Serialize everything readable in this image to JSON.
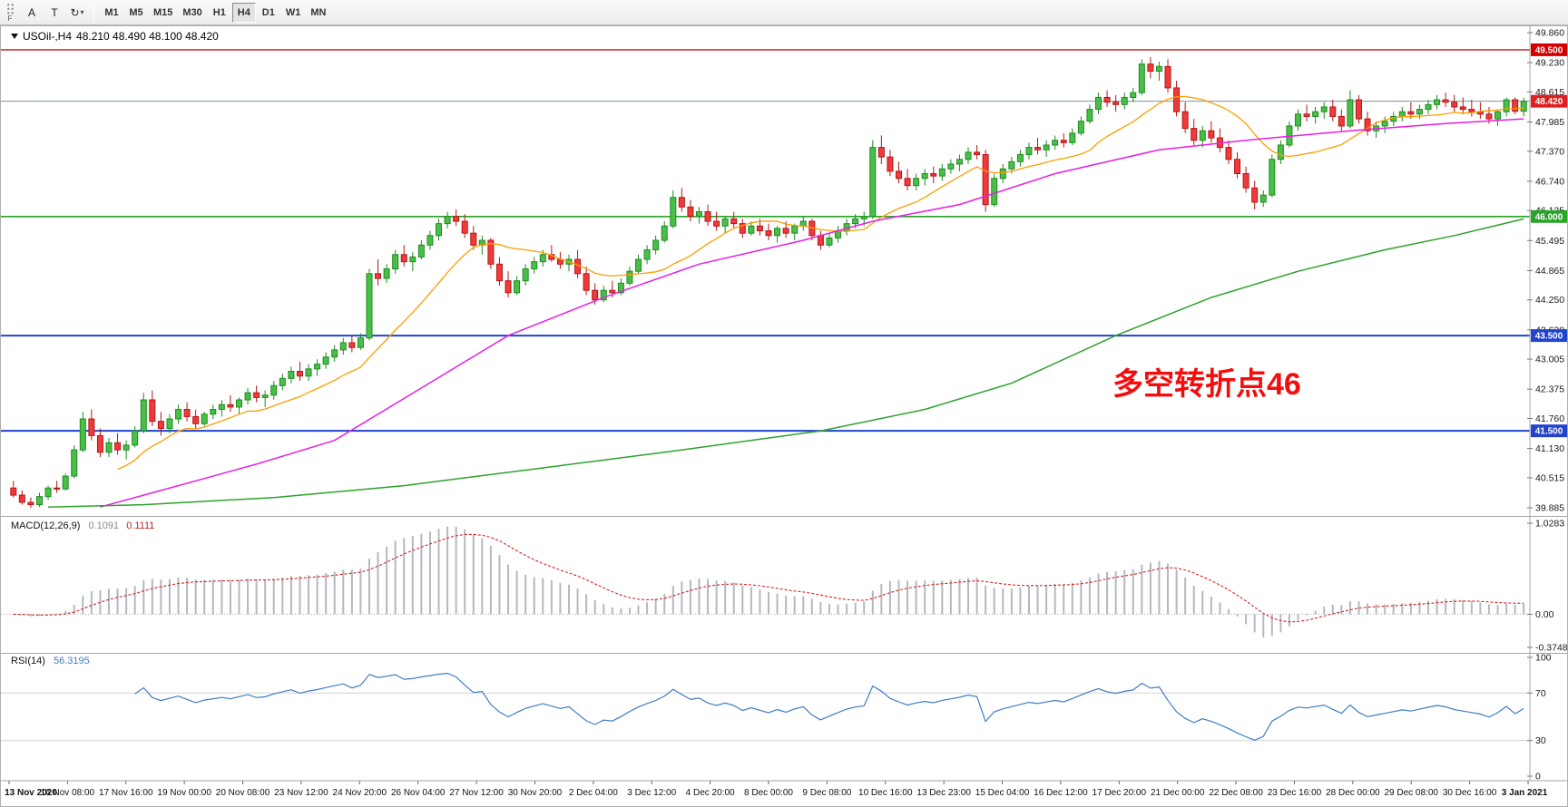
{
  "toolbar": {
    "grip_label": "F",
    "buttons": [
      {
        "name": "annotation-tool",
        "label": "A"
      },
      {
        "name": "text-tool",
        "label": "T"
      },
      {
        "name": "cycle-tool",
        "label": "↻",
        "caret": "▾"
      }
    ],
    "timeframes": [
      "M1",
      "M5",
      "M15",
      "M30",
      "H1",
      "H4",
      "D1",
      "W1",
      "MN"
    ],
    "active_timeframe": "H4"
  },
  "chart_data": {
    "type": "candlestick",
    "symbol_label": "USOil-,H4",
    "ohlc_display": "48.210 48.490 48.100 48.420",
    "annotation": {
      "text": "多空转折点46",
      "color": "#f50d0d"
    },
    "price_range": [
      39.885,
      49.86
    ],
    "price_axis_ticks": [
      "49.860",
      "49.230",
      "48.615",
      "47.985",
      "47.370",
      "46.740",
      "46.125",
      "45.495",
      "44.865",
      "44.250",
      "43.620",
      "43.005",
      "42.375",
      "41.760",
      "41.130",
      "40.515",
      "39.885"
    ],
    "bull_color": "#49bf49",
    "bull_stroke": "#1e8c1e",
    "bear_color": "#ef3a3a",
    "bear_stroke": "#b51616",
    "hlines": [
      {
        "price": 49.5,
        "color": "#cc1111",
        "width": 1.4,
        "badge": "49.500",
        "badge_color": "#d40000"
      },
      {
        "price": 46.0,
        "color": "#28a428",
        "width": 1.6,
        "badge": "46.000",
        "badge_color": "#28a428"
      },
      {
        "price": 43.5,
        "color": "#2244cc",
        "width": 2,
        "badge": "43.500",
        "badge_color": "#2244cc"
      },
      {
        "price": 41.5,
        "color": "#2244cc",
        "width": 2,
        "badge": "41.500",
        "badge_color": "#2244cc"
      }
    ],
    "current_price": {
      "value": 48.42,
      "badge": "48.420",
      "line_color": "#7d8f9e",
      "badge_color": "#e02020"
    },
    "ma_fast": {
      "period": 13,
      "color": "#ff9d00"
    },
    "ma_mid": {
      "color": "#e61ee6",
      "points": [
        [
          10,
          39.9
        ],
        [
          16,
          40.2
        ],
        [
          28,
          40.8
        ],
        [
          37,
          41.3
        ],
        [
          47,
          42.4
        ],
        [
          57,
          43.5
        ],
        [
          68,
          44.3
        ],
        [
          79,
          45.0
        ],
        [
          91,
          45.5
        ],
        [
          99,
          45.9
        ],
        [
          109,
          46.25
        ],
        [
          120,
          46.9
        ],
        [
          132,
          47.4
        ],
        [
          142,
          47.6
        ],
        [
          154,
          47.8
        ],
        [
          165,
          47.95
        ],
        [
          174,
          48.05
        ]
      ]
    },
    "ma_slow": {
      "color": "#2ba32b",
      "points": [
        [
          4,
          39.9
        ],
        [
          15,
          39.95
        ],
        [
          30,
          40.1
        ],
        [
          45,
          40.35
        ],
        [
          60,
          40.7
        ],
        [
          75,
          41.05
        ],
        [
          93,
          41.5
        ],
        [
          105,
          41.95
        ],
        [
          115,
          42.5
        ],
        [
          127,
          43.5
        ],
        [
          138,
          44.3
        ],
        [
          148,
          44.85
        ],
        [
          158,
          45.3
        ],
        [
          166,
          45.6
        ],
        [
          174,
          45.95
        ]
      ]
    },
    "candles": [
      [
        40.3,
        40.45,
        40.1,
        40.15
      ],
      [
        40.15,
        40.25,
        39.95,
        40.0
      ],
      [
        40.0,
        40.1,
        39.88,
        39.95
      ],
      [
        39.95,
        40.2,
        39.9,
        40.12
      ],
      [
        40.12,
        40.35,
        40.05,
        40.3
      ],
      [
        40.3,
        40.45,
        40.2,
        40.28
      ],
      [
        40.28,
        40.6,
        40.25,
        40.55
      ],
      [
        40.55,
        41.2,
        40.5,
        41.1
      ],
      [
        41.1,
        41.9,
        41.05,
        41.75
      ],
      [
        41.75,
        41.95,
        41.3,
        41.4
      ],
      [
        41.4,
        41.55,
        40.95,
        41.05
      ],
      [
        41.05,
        41.35,
        40.95,
        41.25
      ],
      [
        41.25,
        41.45,
        41.0,
        41.1
      ],
      [
        41.1,
        41.3,
        40.9,
        41.2
      ],
      [
        41.2,
        41.6,
        41.15,
        41.5
      ],
      [
        41.5,
        42.3,
        41.45,
        42.15
      ],
      [
        42.15,
        42.35,
        41.6,
        41.7
      ],
      [
        41.7,
        41.9,
        41.4,
        41.55
      ],
      [
        41.55,
        41.85,
        41.45,
        41.75
      ],
      [
        41.75,
        42.05,
        41.65,
        41.95
      ],
      [
        41.95,
        42.1,
        41.7,
        41.8
      ],
      [
        41.8,
        41.95,
        41.55,
        41.65
      ],
      [
        41.65,
        41.9,
        41.6,
        41.85
      ],
      [
        41.85,
        42.05,
        41.75,
        41.95
      ],
      [
        41.95,
        42.15,
        41.8,
        42.05
      ],
      [
        42.05,
        42.25,
        41.9,
        42.0
      ],
      [
        42.0,
        42.2,
        41.85,
        42.15
      ],
      [
        42.15,
        42.4,
        42.05,
        42.3
      ],
      [
        42.3,
        42.45,
        42.1,
        42.2
      ],
      [
        42.2,
        42.35,
        42.0,
        42.25
      ],
      [
        42.25,
        42.55,
        42.15,
        42.45
      ],
      [
        42.45,
        42.7,
        42.35,
        42.6
      ],
      [
        42.6,
        42.85,
        42.5,
        42.75
      ],
      [
        42.75,
        42.95,
        42.55,
        42.65
      ],
      [
        42.65,
        42.9,
        42.55,
        42.8
      ],
      [
        42.8,
        43.0,
        42.65,
        42.9
      ],
      [
        42.9,
        43.15,
        42.8,
        43.05
      ],
      [
        43.05,
        43.3,
        42.95,
        43.2
      ],
      [
        43.2,
        43.45,
        43.1,
        43.35
      ],
      [
        43.35,
        43.5,
        43.15,
        43.25
      ],
      [
        43.25,
        43.55,
        43.2,
        43.45
      ],
      [
        43.45,
        44.9,
        43.4,
        44.8
      ],
      [
        44.8,
        45.1,
        44.55,
        44.7
      ],
      [
        44.7,
        45.0,
        44.6,
        44.9
      ],
      [
        44.9,
        45.3,
        44.8,
        45.2
      ],
      [
        45.2,
        45.4,
        44.95,
        45.05
      ],
      [
        45.05,
        45.25,
        44.85,
        45.15
      ],
      [
        45.15,
        45.5,
        45.1,
        45.4
      ],
      [
        45.4,
        45.7,
        45.3,
        45.6
      ],
      [
        45.6,
        45.95,
        45.5,
        45.85
      ],
      [
        45.85,
        46.1,
        45.75,
        46.0
      ],
      [
        46.0,
        46.15,
        45.8,
        45.9
      ],
      [
        45.9,
        46.05,
        45.55,
        45.65
      ],
      [
        45.65,
        45.8,
        45.3,
        45.4
      ],
      [
        45.4,
        45.6,
        45.2,
        45.5
      ],
      [
        45.5,
        45.55,
        44.9,
        45.0
      ],
      [
        45.0,
        45.15,
        44.55,
        44.65
      ],
      [
        44.65,
        44.85,
        44.3,
        44.4
      ],
      [
        44.4,
        44.75,
        44.35,
        44.65
      ],
      [
        44.65,
        45.0,
        44.55,
        44.9
      ],
      [
        44.9,
        45.15,
        44.8,
        45.05
      ],
      [
        45.05,
        45.3,
        44.95,
        45.2
      ],
      [
        45.2,
        45.4,
        45.05,
        45.1
      ],
      [
        45.1,
        45.25,
        44.9,
        45.0
      ],
      [
        45.0,
        45.2,
        44.85,
        45.1
      ],
      [
        45.1,
        45.3,
        44.7,
        44.8
      ],
      [
        44.8,
        44.95,
        44.35,
        44.45
      ],
      [
        44.45,
        44.6,
        44.15,
        44.25
      ],
      [
        44.25,
        44.55,
        44.2,
        44.45
      ],
      [
        44.45,
        44.65,
        44.3,
        44.4
      ],
      [
        44.4,
        44.7,
        44.35,
        44.6
      ],
      [
        44.6,
        44.95,
        44.55,
        44.85
      ],
      [
        44.85,
        45.2,
        44.8,
        45.1
      ],
      [
        45.1,
        45.4,
        45.0,
        45.3
      ],
      [
        45.3,
        45.6,
        45.2,
        45.5
      ],
      [
        45.5,
        45.9,
        45.45,
        45.8
      ],
      [
        45.8,
        46.55,
        45.75,
        46.4
      ],
      [
        46.4,
        46.6,
        46.1,
        46.2
      ],
      [
        46.2,
        46.35,
        45.9,
        46.0
      ],
      [
        46.0,
        46.2,
        45.85,
        46.1
      ],
      [
        46.1,
        46.25,
        45.8,
        45.9
      ],
      [
        45.9,
        46.1,
        45.7,
        45.8
      ],
      [
        45.8,
        46.0,
        45.65,
        45.95
      ],
      [
        45.95,
        46.1,
        45.75,
        45.85
      ],
      [
        45.85,
        45.95,
        45.55,
        45.65
      ],
      [
        45.65,
        45.9,
        45.6,
        45.8
      ],
      [
        45.8,
        45.95,
        45.6,
        45.7
      ],
      [
        45.7,
        45.85,
        45.5,
        45.6
      ],
      [
        45.6,
        45.8,
        45.45,
        45.75
      ],
      [
        45.75,
        45.9,
        45.55,
        45.65
      ],
      [
        45.65,
        45.85,
        45.5,
        45.8
      ],
      [
        45.8,
        46.0,
        45.7,
        45.9
      ],
      [
        45.9,
        45.95,
        45.5,
        45.6
      ],
      [
        45.6,
        45.7,
        45.3,
        45.4
      ],
      [
        45.4,
        45.65,
        45.35,
        45.55
      ],
      [
        45.55,
        45.8,
        45.45,
        45.7
      ],
      [
        45.7,
        45.95,
        45.6,
        45.85
      ],
      [
        45.85,
        46.05,
        45.75,
        45.95
      ],
      [
        45.95,
        46.1,
        45.8,
        46.0
      ],
      [
        46.0,
        47.6,
        45.95,
        47.45
      ],
      [
        47.45,
        47.7,
        47.1,
        47.25
      ],
      [
        47.25,
        47.4,
        46.85,
        46.95
      ],
      [
        46.95,
        47.15,
        46.7,
        46.8
      ],
      [
        46.8,
        47.0,
        46.55,
        46.65
      ],
      [
        46.65,
        46.9,
        46.55,
        46.8
      ],
      [
        46.8,
        47.0,
        46.65,
        46.9
      ],
      [
        46.9,
        47.05,
        46.7,
        46.85
      ],
      [
        46.85,
        47.1,
        46.75,
        47.0
      ],
      [
        47.0,
        47.2,
        46.9,
        47.1
      ],
      [
        47.1,
        47.3,
        46.95,
        47.2
      ],
      [
        47.2,
        47.45,
        47.1,
        47.35
      ],
      [
        47.35,
        47.5,
        47.2,
        47.3
      ],
      [
        47.3,
        47.4,
        46.1,
        46.25
      ],
      [
        46.25,
        46.9,
        46.2,
        46.8
      ],
      [
        46.8,
        47.1,
        46.7,
        47.0
      ],
      [
        47.0,
        47.25,
        46.9,
        47.15
      ],
      [
        47.15,
        47.4,
        47.05,
        47.3
      ],
      [
        47.3,
        47.55,
        47.2,
        47.45
      ],
      [
        47.45,
        47.65,
        47.3,
        47.4
      ],
      [
        47.4,
        47.6,
        47.25,
        47.5
      ],
      [
        47.5,
        47.7,
        47.4,
        47.6
      ],
      [
        47.6,
        47.75,
        47.45,
        47.55
      ],
      [
        47.55,
        47.85,
        47.5,
        47.75
      ],
      [
        47.75,
        48.1,
        47.7,
        48.0
      ],
      [
        48.0,
        48.35,
        47.95,
        48.25
      ],
      [
        48.25,
        48.6,
        48.15,
        48.5
      ],
      [
        48.5,
        48.65,
        48.3,
        48.4
      ],
      [
        48.4,
        48.55,
        48.2,
        48.35
      ],
      [
        48.35,
        48.6,
        48.25,
        48.5
      ],
      [
        48.5,
        48.7,
        48.4,
        48.6
      ],
      [
        48.6,
        49.3,
        48.55,
        49.2
      ],
      [
        49.2,
        49.35,
        48.9,
        49.05
      ],
      [
        49.05,
        49.25,
        48.85,
        49.15
      ],
      [
        49.15,
        49.3,
        48.6,
        48.7
      ],
      [
        48.7,
        48.85,
        48.1,
        48.2
      ],
      [
        48.2,
        48.4,
        47.75,
        47.85
      ],
      [
        47.85,
        48.05,
        47.5,
        47.6
      ],
      [
        47.6,
        47.9,
        47.45,
        47.8
      ],
      [
        47.8,
        48.0,
        47.55,
        47.65
      ],
      [
        47.65,
        47.85,
        47.35,
        47.45
      ],
      [
        47.45,
        47.6,
        47.1,
        47.2
      ],
      [
        47.2,
        47.35,
        46.8,
        46.9
      ],
      [
        46.9,
        47.05,
        46.5,
        46.6
      ],
      [
        46.6,
        46.75,
        46.15,
        46.3
      ],
      [
        46.3,
        46.55,
        46.2,
        46.45
      ],
      [
        46.45,
        47.3,
        46.4,
        47.2
      ],
      [
        47.2,
        47.6,
        47.1,
        47.5
      ],
      [
        47.5,
        48.0,
        47.45,
        47.9
      ],
      [
        47.9,
        48.25,
        47.8,
        48.15
      ],
      [
        48.15,
        48.35,
        48.0,
        48.1
      ],
      [
        48.1,
        48.3,
        47.95,
        48.2
      ],
      [
        48.2,
        48.4,
        48.05,
        48.3
      ],
      [
        48.3,
        48.45,
        48.0,
        48.1
      ],
      [
        48.1,
        48.25,
        47.8,
        47.9
      ],
      [
        47.9,
        48.65,
        47.85,
        48.45
      ],
      [
        48.45,
        48.55,
        47.95,
        48.05
      ],
      [
        48.05,
        48.2,
        47.7,
        47.8
      ],
      [
        47.8,
        48.0,
        47.65,
        47.9
      ],
      [
        47.9,
        48.1,
        47.75,
        48.0
      ],
      [
        48.0,
        48.2,
        47.9,
        48.1
      ],
      [
        48.1,
        48.3,
        48.0,
        48.2
      ],
      [
        48.2,
        48.4,
        48.05,
        48.15
      ],
      [
        48.15,
        48.35,
        48.05,
        48.25
      ],
      [
        48.25,
        48.45,
        48.15,
        48.35
      ],
      [
        48.35,
        48.55,
        48.25,
        48.45
      ],
      [
        48.45,
        48.6,
        48.3,
        48.4
      ],
      [
        48.4,
        48.55,
        48.2,
        48.3
      ],
      [
        48.3,
        48.5,
        48.15,
        48.25
      ],
      [
        48.25,
        48.45,
        48.1,
        48.2
      ],
      [
        48.2,
        48.4,
        48.05,
        48.15
      ],
      [
        48.15,
        48.3,
        47.95,
        48.05
      ],
      [
        48.05,
        48.25,
        47.9,
        48.2
      ],
      [
        48.2,
        48.5,
        48.1,
        48.45
      ],
      [
        48.45,
        48.5,
        48.15,
        48.21
      ],
      [
        48.21,
        48.49,
        48.1,
        48.42
      ]
    ],
    "time_labels": [
      "13 Nov 2020",
      "16 Nov 08:00",
      "17 Nov 16:00",
      "19 Nov 00:00",
      "20 Nov 08:00",
      "23 Nov 12:00",
      "24 Nov 20:00",
      "26 Nov 04:00",
      "27 Nov 12:00",
      "30 Nov 20:00",
      "2 Dec 04:00",
      "3 Dec 12:00",
      "4 Dec 20:00",
      "8 Dec 00:00",
      "9 Dec 08:00",
      "10 Dec 16:00",
      "13 Dec 23:00",
      "15 Dec 04:00",
      "16 Dec 12:00",
      "17 Dec 20:00",
      "21 Dec 00:00",
      "22 Dec 08:00",
      "23 Dec 16:00",
      "28 Dec 00:00",
      "29 Dec 08:00",
      "30 Dec 16:00",
      "3 Jan 2021"
    ],
    "macd": {
      "label": "MACD(12,26,9)",
      "value_main": "0.1091",
      "value_signal": "0.1111",
      "fast": 12,
      "slow": 26,
      "signal": 9,
      "axis_max": 1.0283,
      "axis_min": -0.3748,
      "axis_labels": [
        "1.0283",
        "0.00",
        "-0.3748"
      ],
      "signal_color": "#d62222",
      "hist_color": "#b3b9c0"
    },
    "rsi": {
      "label": "RSI(14)",
      "value": "56.3195",
      "period": 14,
      "levels": [
        70,
        30
      ],
      "axis_labels": [
        "100",
        "70",
        "30",
        "0"
      ],
      "color": "#3f7cc4"
    }
  }
}
